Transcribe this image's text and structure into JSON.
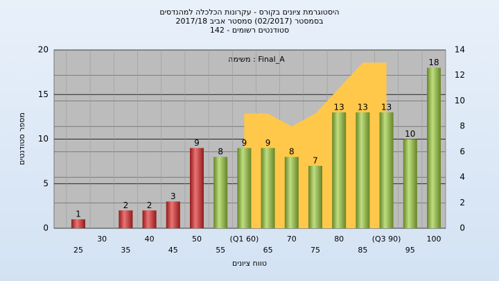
{
  "chart_data": {
    "type": "bar",
    "title": [
      "היסטוגרמת ציונים בקורס - עקרונות הכלכלה למהנדסים",
      "בסמסטר  (02/2017)  סמסטר אביב 2017/18",
      "סטודנטים רשומים - 142"
    ],
    "annotation": "משימה : Final_A",
    "xlabel": "טווח ציונים",
    "ylabel": "מספר סטודנטים",
    "categories": [
      "25",
      "30",
      "35",
      "40",
      "45",
      "50",
      "55",
      "(Q1 60)",
      "65",
      "70",
      "75",
      "80",
      "85",
      "(Q3 90)",
      "95",
      "100"
    ],
    "values": [
      1,
      0,
      2,
      2,
      3,
      9,
      8,
      9,
      9,
      8,
      7,
      13,
      13,
      13,
      10,
      18
    ],
    "colors": [
      "#e02828",
      "#e02828",
      "#e02828",
      "#e02828",
      "#e02828",
      "#e02828",
      "#9ccc3c",
      "#9ccc3c",
      "#9ccc3c",
      "#9ccc3c",
      "#9ccc3c",
      "#9ccc3c",
      "#9ccc3c",
      "#9ccc3c",
      "#9ccc3c",
      "#9ccc3c"
    ],
    "area": {
      "axis": "y2",
      "color": "#ffc84a",
      "values": [
        null,
        null,
        null,
        null,
        null,
        null,
        null,
        9,
        9,
        8,
        9,
        11,
        13,
        13,
        null,
        null
      ]
    },
    "ylim": [
      0,
      20
    ],
    "yticks": [
      0,
      5,
      10,
      15,
      20
    ],
    "y2lim": [
      0,
      14
    ],
    "y2ticks": [
      0,
      2,
      4,
      6,
      8,
      10,
      12,
      14
    ],
    "grid": true
  }
}
